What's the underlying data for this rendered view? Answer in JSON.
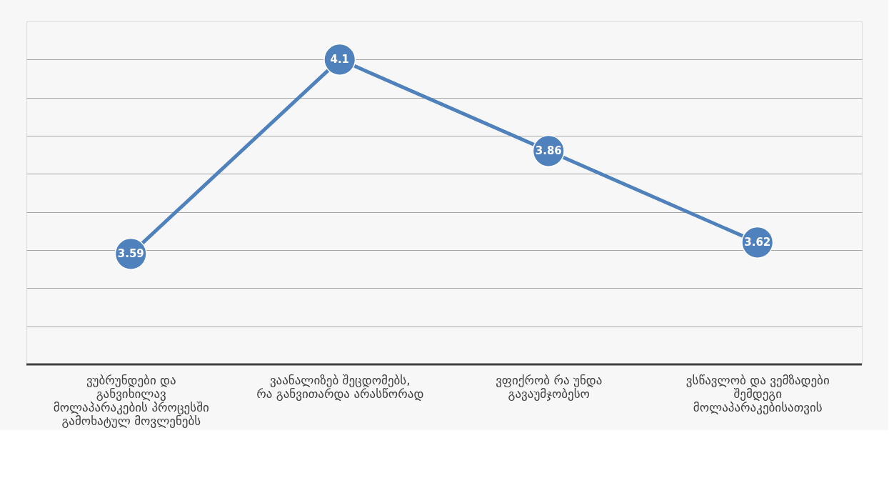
{
  "chart_data": {
    "type": "line",
    "categories": [
      "ვუბრუნდები და განვიხილავ მოლაპარაკების პროცესში გამოხატულ მოვლენებს",
      "ვაანალიზებ შეცდომებს, რა განვითარდა არასწორად",
      "ვფიქრობ რა უნდა გავაუმჯობესო",
      "ვსწავლობ და ვემზადები შემდეგი მოლაპარაკებისათვის"
    ],
    "series": [
      {
        "color": "#4f81bd",
        "values": [
          3.59,
          4.1,
          3.86,
          3.62
        ]
      }
    ],
    "ylim": [
      3.3,
      4.2
    ],
    "yticks": [
      {
        "value": 3.4,
        "label": null
      },
      {
        "value": 3.5,
        "label": null
      },
      {
        "value": 3.6,
        "label": null
      },
      {
        "value": 3.7,
        "label": null
      },
      {
        "value": 3.8,
        "label": null
      },
      {
        "value": 3.9,
        "label": null
      },
      {
        "value": 4.0,
        "label": null
      },
      {
        "value": 4.1,
        "label": null
      }
    ],
    "tick_labels": "x",
    "grid": "y",
    "marker": "circle",
    "line_style": "solid",
    "data_labels": true
  }
}
